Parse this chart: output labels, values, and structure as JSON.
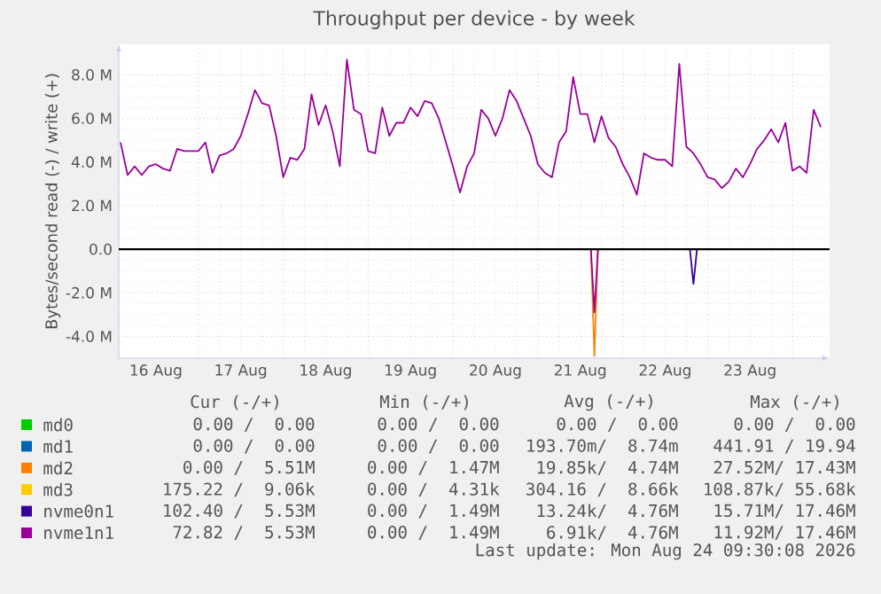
{
  "chart_data": {
    "type": "line",
    "title": "Throughput per device - by week",
    "ylabel": "Bytes/second read (-) / write (+)",
    "xlim": [
      "2026-08-16T01:30",
      "2026-08-24T10:30"
    ],
    "xticks": [
      {
        "value": "2026-08-16T12:00",
        "label": "16 Aug"
      },
      {
        "value": "2026-08-17T00:00",
        "label": null
      },
      {
        "value": "2026-08-17T12:00",
        "label": "17 Aug"
      },
      {
        "value": "2026-08-18T00:00",
        "label": null
      },
      {
        "value": "2026-08-18T12:00",
        "label": "18 Aug"
      },
      {
        "value": "2026-08-19T00:00",
        "label": null
      },
      {
        "value": "2026-08-19T12:00",
        "label": "19 Aug"
      },
      {
        "value": "2026-08-20T00:00",
        "label": null
      },
      {
        "value": "2026-08-20T12:00",
        "label": "20 Aug"
      },
      {
        "value": "2026-08-21T00:00",
        "label": null
      },
      {
        "value": "2026-08-21T12:00",
        "label": "21 Aug"
      },
      {
        "value": "2026-08-22T00:00",
        "label": null
      },
      {
        "value": "2026-08-22T12:00",
        "label": "22 Aug"
      },
      {
        "value": "2026-08-23T00:00",
        "label": null
      },
      {
        "value": "2026-08-23T12:00",
        "label": "23 Aug"
      },
      {
        "value": "2026-08-24T00:00",
        "label": null
      }
    ],
    "ylim": [
      -5,
      9.4
    ],
    "yticks": [
      {
        "value": -4,
        "label": "-4.0 M"
      },
      {
        "value": -2,
        "label": "-2.0 M"
      },
      {
        "value": 0,
        "label": "0.0"
      },
      {
        "value": 2,
        "label": "2.0 M"
      },
      {
        "value": 4,
        "label": "4.0 M"
      },
      {
        "value": 6,
        "label": "6.0 M"
      },
      {
        "value": 8,
        "label": "8.0 M"
      }
    ],
    "grid": true,
    "legend": "bottom",
    "marker": "none",
    "x": [
      "2026-08-16T02:00",
      "2026-08-16T04:00",
      "2026-08-16T06:00",
      "2026-08-16T08:00",
      "2026-08-16T10:00",
      "2026-08-16T12:00",
      "2026-08-16T14:00",
      "2026-08-16T16:00",
      "2026-08-16T18:00",
      "2026-08-16T20:00",
      "2026-08-16T22:00",
      "2026-08-17T00:00",
      "2026-08-17T02:00",
      "2026-08-17T04:00",
      "2026-08-17T06:00",
      "2026-08-17T08:00",
      "2026-08-17T10:00",
      "2026-08-17T12:00",
      "2026-08-17T14:00",
      "2026-08-17T16:00",
      "2026-08-17T18:00",
      "2026-08-17T20:00",
      "2026-08-17T22:00",
      "2026-08-18T00:00",
      "2026-08-18T02:00",
      "2026-08-18T04:00",
      "2026-08-18T06:00",
      "2026-08-18T08:00",
      "2026-08-18T10:00",
      "2026-08-18T12:00",
      "2026-08-18T14:00",
      "2026-08-18T16:00",
      "2026-08-18T18:00",
      "2026-08-18T20:00",
      "2026-08-18T22:00",
      "2026-08-19T00:00",
      "2026-08-19T02:00",
      "2026-08-19T04:00",
      "2026-08-19T06:00",
      "2026-08-19T08:00",
      "2026-08-19T10:00",
      "2026-08-19T12:00",
      "2026-08-19T14:00",
      "2026-08-19T16:00",
      "2026-08-19T18:00",
      "2026-08-19T20:00",
      "2026-08-19T22:00",
      "2026-08-20T00:00",
      "2026-08-20T02:00",
      "2026-08-20T04:00",
      "2026-08-20T06:00",
      "2026-08-20T08:00",
      "2026-08-20T10:00",
      "2026-08-20T12:00",
      "2026-08-20T14:00",
      "2026-08-20T16:00",
      "2026-08-20T18:00",
      "2026-08-20T20:00",
      "2026-08-20T22:00",
      "2026-08-21T00:00",
      "2026-08-21T02:00",
      "2026-08-21T04:00",
      "2026-08-21T06:00",
      "2026-08-21T08:00",
      "2026-08-21T10:00",
      "2026-08-21T12:00",
      "2026-08-21T14:00",
      "2026-08-21T16:00",
      "2026-08-21T18:00",
      "2026-08-21T20:00",
      "2026-08-21T22:00",
      "2026-08-22T00:00",
      "2026-08-22T02:00",
      "2026-08-22T04:00",
      "2026-08-22T06:00",
      "2026-08-22T08:00",
      "2026-08-22T10:00",
      "2026-08-22T12:00",
      "2026-08-22T14:00",
      "2026-08-22T16:00",
      "2026-08-22T18:00",
      "2026-08-22T20:00",
      "2026-08-22T22:00",
      "2026-08-23T00:00",
      "2026-08-23T02:00",
      "2026-08-23T04:00",
      "2026-08-23T06:00",
      "2026-08-23T08:00",
      "2026-08-23T10:00",
      "2026-08-23T12:00",
      "2026-08-23T14:00",
      "2026-08-23T16:00",
      "2026-08-23T18:00",
      "2026-08-23T20:00",
      "2026-08-23T22:00",
      "2026-08-24T00:00",
      "2026-08-24T02:00",
      "2026-08-24T04:00",
      "2026-08-24T06:00",
      "2026-08-24T08:00"
    ],
    "series": [
      {
        "name": "md0",
        "color": "#00cc00",
        "values": [
          null,
          null,
          null,
          null,
          null,
          null,
          null,
          null,
          null,
          null,
          null,
          null,
          null,
          null,
          null,
          null,
          null,
          null,
          null,
          null,
          null,
          null,
          null,
          null,
          null,
          null,
          null,
          null,
          null,
          null,
          null,
          null,
          null,
          null,
          null,
          null,
          null,
          null,
          null,
          null,
          null,
          null,
          null,
          null,
          null,
          null,
          null,
          null,
          null,
          null,
          null,
          null,
          null,
          null,
          null,
          null,
          null,
          null,
          null,
          null,
          null,
          null,
          null,
          null,
          null,
          null,
          null,
          null,
          null,
          null,
          null,
          null,
          null,
          null,
          null,
          null,
          null,
          null,
          null,
          null,
          null,
          null,
          null,
          null,
          null,
          null,
          null,
          null,
          null,
          null,
          null,
          null,
          null,
          null,
          null,
          null,
          null,
          null,
          null,
          null
        ]
      },
      {
        "name": "md1",
        "color": "#0066b3",
        "values": [
          null,
          null,
          null,
          null,
          null,
          null,
          null,
          null,
          null,
          null,
          null,
          null,
          null,
          null,
          null,
          null,
          null,
          null,
          null,
          null,
          null,
          null,
          null,
          null,
          null,
          null,
          null,
          null,
          null,
          null,
          null,
          null,
          null,
          null,
          null,
          null,
          null,
          null,
          null,
          null,
          null,
          null,
          null,
          null,
          null,
          null,
          null,
          null,
          null,
          null,
          null,
          null,
          null,
          null,
          null,
          null,
          null,
          null,
          null,
          null,
          null,
          null,
          null,
          null,
          null,
          null,
          null,
          null,
          null,
          null,
          null,
          null,
          null,
          null,
          null,
          null,
          null,
          null,
          null,
          null,
          null,
          null,
          null,
          null,
          null,
          null,
          null,
          null,
          null,
          null,
          null,
          null,
          null,
          null,
          null,
          null,
          null,
          null,
          null,
          null
        ]
      },
      {
        "name": "md2",
        "color": "#ff8000",
        "values": [
          null,
          null,
          null,
          null,
          null,
          null,
          null,
          null,
          null,
          null,
          null,
          null,
          null,
          null,
          null,
          null,
          null,
          null,
          null,
          null,
          null,
          null,
          null,
          null,
          null,
          null,
          null,
          null,
          null,
          null,
          null,
          null,
          null,
          null,
          null,
          null,
          null,
          null,
          null,
          null,
          null,
          null,
          null,
          null,
          null,
          null,
          null,
          null,
          null,
          null,
          null,
          null,
          null,
          null,
          null,
          null,
          null,
          null,
          null,
          null,
          null,
          null,
          null,
          null,
          null,
          null,
          null,
          null,
          null,
          null,
          null,
          null,
          null,
          null,
          null,
          null,
          null,
          null,
          null,
          null,
          null,
          null,
          null,
          null,
          null,
          null,
          null,
          null,
          null,
          null,
          null,
          null,
          null,
          null,
          null,
          null,
          null,
          null,
          null,
          null
        ]
      },
      {
        "name": "md3",
        "color": "#ffcc00",
        "values": [
          null,
          null,
          null,
          null,
          null,
          null,
          null,
          null,
          null,
          null,
          null,
          null,
          null,
          null,
          null,
          null,
          null,
          null,
          null,
          null,
          null,
          null,
          null,
          null,
          null,
          null,
          null,
          null,
          null,
          null,
          null,
          null,
          null,
          null,
          null,
          null,
          null,
          null,
          null,
          null,
          null,
          null,
          null,
          null,
          null,
          null,
          null,
          null,
          null,
          null,
          null,
          null,
          null,
          null,
          null,
          null,
          null,
          null,
          null,
          null,
          null,
          null,
          null,
          null,
          null,
          null,
          null,
          null,
          null,
          null,
          null,
          null,
          null,
          null,
          null,
          null,
          null,
          null,
          null,
          null,
          null,
          null,
          null,
          null,
          null,
          null,
          null,
          null,
          null,
          null,
          null,
          null,
          null,
          null,
          null,
          null,
          null,
          null,
          null,
          null
        ]
      },
      {
        "name": "nvme0n1",
        "color": "#330099",
        "values": [
          null,
          null,
          null,
          null,
          null,
          null,
          null,
          null,
          null,
          null,
          null,
          null,
          null,
          null,
          null,
          null,
          null,
          null,
          null,
          null,
          null,
          null,
          null,
          null,
          null,
          null,
          null,
          null,
          null,
          null,
          null,
          null,
          null,
          null,
          null,
          null,
          null,
          null,
          null,
          null,
          null,
          null,
          null,
          null,
          null,
          null,
          null,
          null,
          null,
          null,
          null,
          null,
          null,
          null,
          null,
          null,
          null,
          null,
          null,
          null,
          null,
          null,
          null,
          null,
          null,
          null,
          null,
          null,
          null,
          null,
          null,
          null,
          null,
          null,
          null,
          null,
          null,
          null,
          null,
          null,
          null,
          null,
          null,
          null,
          null,
          null,
          null,
          null,
          null,
          null,
          null,
          null,
          null,
          null,
          null,
          null,
          null,
          null,
          null,
          null
        ]
      },
      {
        "name": "nvme1n1",
        "color": "#990099",
        "values": [
          4.9,
          3.4,
          3.8,
          3.4,
          3.8,
          3.9,
          3.7,
          3.6,
          4.6,
          4.5,
          4.5,
          4.5,
          4.9,
          3.5,
          4.3,
          4.4,
          4.6,
          5.2,
          6.2,
          7.3,
          6.7,
          6.6,
          5.2,
          3.3,
          4.2,
          4.1,
          4.6,
          7.1,
          5.7,
          6.6,
          5.4,
          3.8,
          8.7,
          6.4,
          6.2,
          4.5,
          4.4,
          6.5,
          5.2,
          5.8,
          5.8,
          6.5,
          6.1,
          6.8,
          6.7,
          6.0,
          4.9,
          3.8,
          2.6,
          3.8,
          4.4,
          6.4,
          6.0,
          5.2,
          6.0,
          7.3,
          6.8,
          6.0,
          5.2,
          3.9,
          3.5,
          3.3,
          4.9,
          5.4,
          7.9,
          6.2,
          6.2,
          4.9,
          6.1,
          5.1,
          4.7,
          3.9,
          3.3,
          2.5,
          4.4,
          4.2,
          4.1,
          4.1,
          3.8,
          8.5,
          4.7,
          4.4,
          3.9,
          3.3,
          3.2,
          2.8,
          3.1,
          3.7,
          3.3,
          3.9,
          4.6,
          5.0,
          5.5,
          4.9,
          5.8,
          3.6,
          3.8,
          3.5,
          6.4,
          5.6
        ]
      },
      {
        "color": "#ff8000",
        "x": [
          "2026-08-21T15:00",
          "2026-08-21T16:00",
          "2026-08-21T17:00"
        ],
        "values": [
          0,
          -4.9,
          0
        ]
      },
      {
        "color": "#990099",
        "x": [
          "2026-08-21T15:00",
          "2026-08-21T16:00",
          "2026-08-21T17:00"
        ],
        "values": [
          0,
          -2.9,
          0
        ]
      },
      {
        "color": "#330099",
        "x": [
          "2026-08-22T19:00",
          "2026-08-22T20:00",
          "2026-08-22T21:00"
        ],
        "values": [
          0,
          -1.6,
          0
        ]
      }
    ],
    "ref_lines": [
      {
        "axis": "y",
        "value": 0,
        "color": "#000000"
      }
    ],
    "annotations": [
      "Cur (-/+)",
      "Min (-/+)",
      "Avg (-/+)",
      "Max (-/+)",
      "0.00 /  0.00",
      "0.00 /  0.00",
      "0.00 /  0.00",
      "0.00 /  0.00",
      "0.00 /  0.00",
      "0.00 /  0.00",
      "193.70m/  8.74m",
      "441.91 / 19.94",
      "0.00 /  5.51M",
      "0.00 /  1.47M",
      "19.85k/  4.74M",
      "27.52M/ 17.43M",
      "175.22 /  9.06k",
      "0.00 /  4.31k",
      "304.16 /  8.66k",
      "108.87k/ 55.68k",
      "102.40 /  5.53M",
      "0.00 /  1.49M",
      "13.24k/  4.76M",
      "15.71M/ 17.46M",
      "72.82 /  5.53M",
      "0.00 /  1.49M",
      "6.91k/  4.76M",
      "11.92M/ 17.46M",
      "Last update: Mon Aug 24 09:30:08 2026"
    ]
  }
}
